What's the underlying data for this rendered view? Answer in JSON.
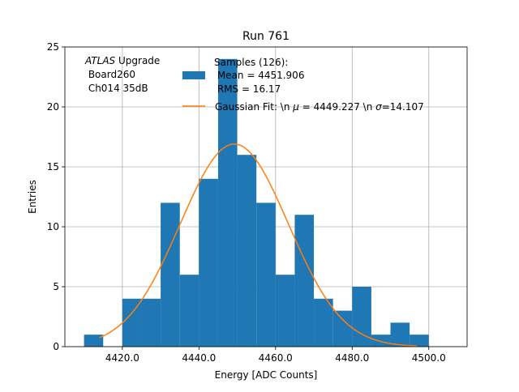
{
  "chart_data": {
    "type": "bar",
    "title": "Run 761",
    "xlabel": "Energy [ADC Counts]",
    "ylabel": "Entries",
    "xlim": [
      4405,
      4510
    ],
    "ylim": [
      0,
      25
    ],
    "x_ticks": [
      4420.0,
      4440.0,
      4460.0,
      4480.0,
      4500.0
    ],
    "x_tick_labels": [
      "4420.0",
      "4440.0",
      "4460.0",
      "4480.0",
      "4500.0"
    ],
    "y_ticks": [
      0,
      5,
      10,
      15,
      20,
      25
    ],
    "y_tick_labels": [
      "0",
      "5",
      "10",
      "15",
      "20",
      "25"
    ],
    "grid": true,
    "histogram": {
      "bin_edges": [
        4410,
        4415,
        4420,
        4425,
        4430,
        4435,
        4440,
        4445,
        4450,
        4455,
        4460,
        4465,
        4470,
        4475,
        4480,
        4485,
        4490,
        4495,
        4500
      ],
      "values": [
        1,
        0,
        4,
        4,
        12,
        6,
        14,
        24,
        16,
        12,
        6,
        11,
        4,
        3,
        5,
        1,
        2,
        1
      ],
      "color": "#1f77b4"
    },
    "gaussian_fit": {
      "mean": 4449.227,
      "sigma": 14.107,
      "amplitude": 16.9,
      "x_range": [
        4414,
        4497
      ],
      "color": "#ff7f0e"
    },
    "annotation": {
      "italic": "ATLAS",
      "line1_rest": " Upgrade",
      "line2": " Board260",
      "line3": " Ch014 35dB"
    },
    "legend": {
      "placement": "top",
      "hist_line1": "Samples (126):",
      "hist_line2": " Mean = 4451.906",
      "hist_line3": " RMS = 16.17",
      "fit_prefix": "Gaussian Fit: \\n ",
      "fit_mu_symbol": "μ",
      "fit_middle": " = 4449.227 \\n ",
      "fit_sigma_symbol": "σ",
      "fit_suffix": "=14.107"
    }
  }
}
